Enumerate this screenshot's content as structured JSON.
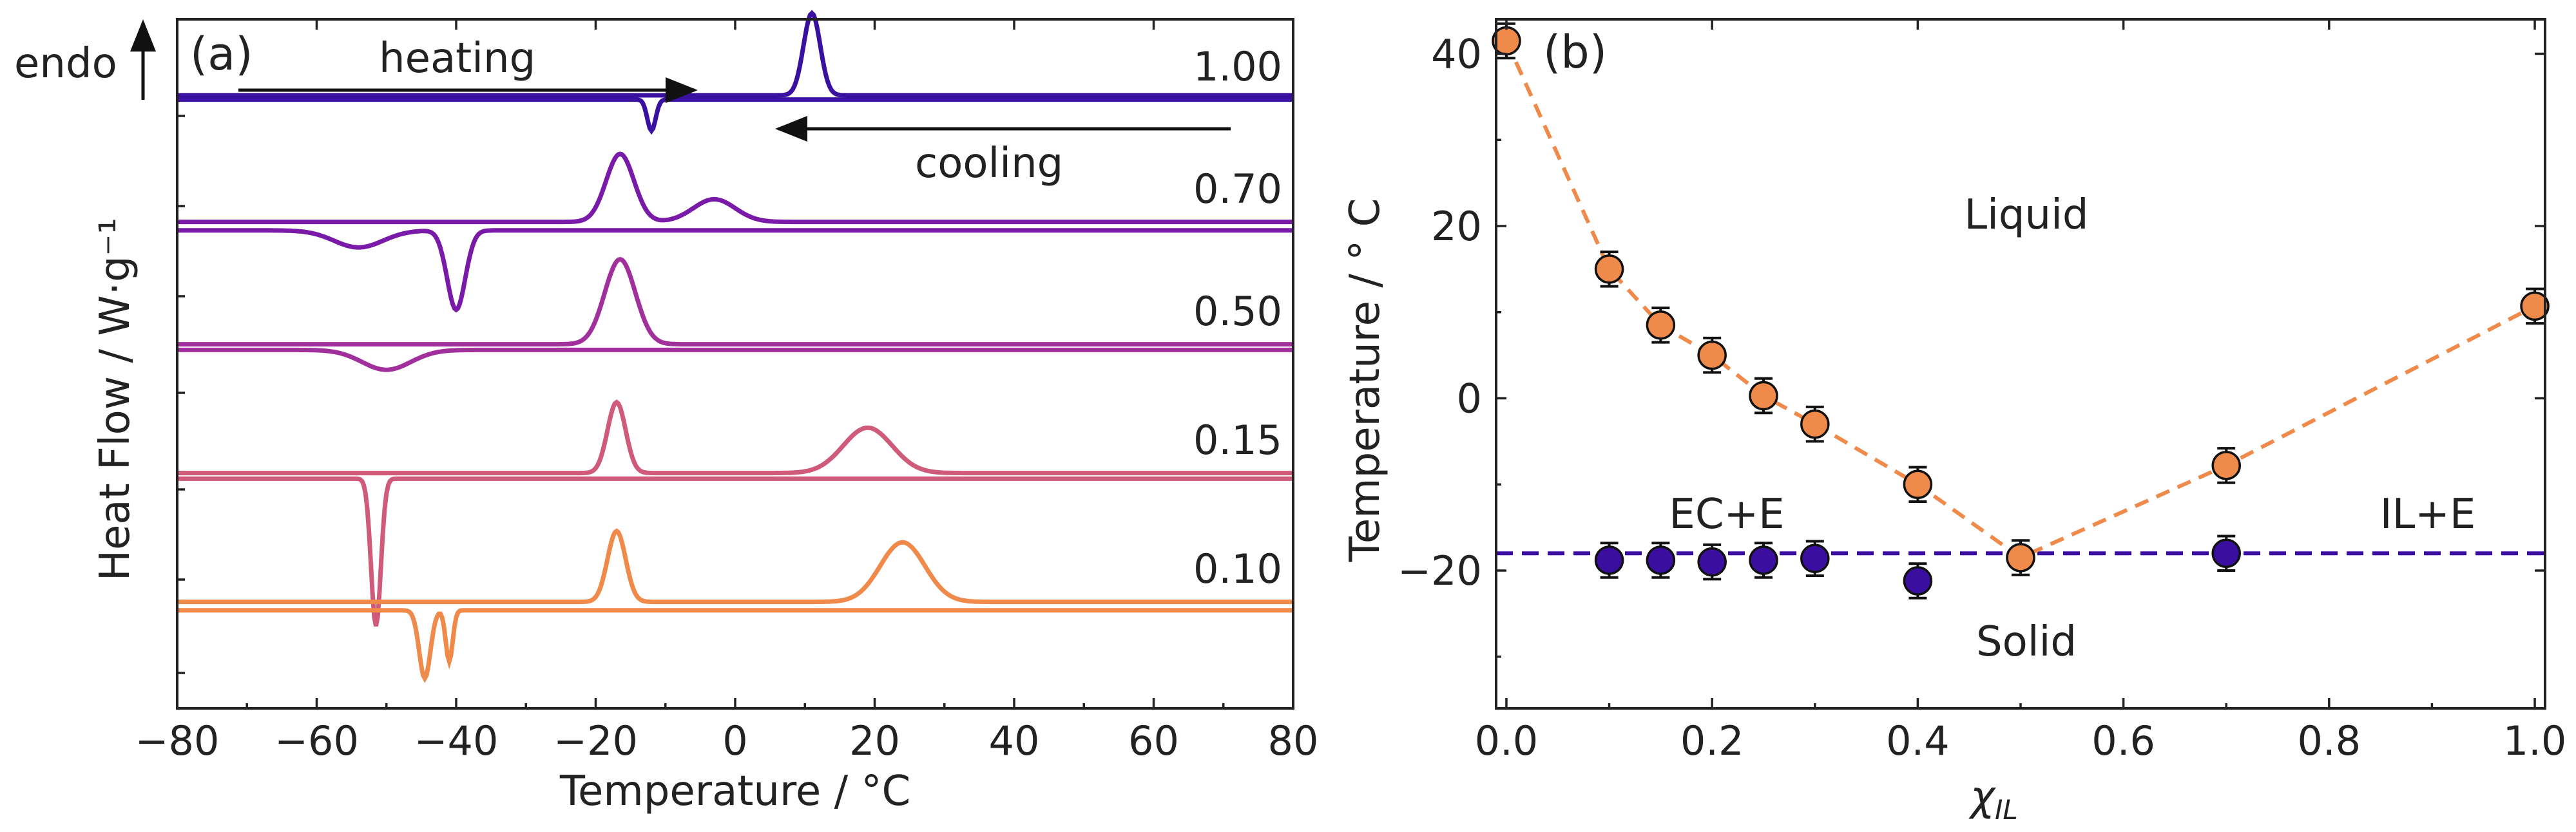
{
  "chart_data": [
    {
      "type": "line",
      "panel": "(a)",
      "xlabel": "Temperature / °C",
      "ylabel": "Heat Flow / W·g⁻¹",
      "xlim": [
        -80,
        80
      ],
      "xticks": [
        -80,
        -60,
        -40,
        -20,
        0,
        20,
        40,
        60,
        80
      ],
      "endo_label": "endo",
      "heating_label": "heating",
      "cooling_label": "cooling",
      "series": [
        {
          "name": "1.00",
          "color": "#3a10a0",
          "heating_base": 0.5,
          "cooling_base": 0.35,
          "heating_peaks": [
            {
              "x": 11,
              "h": 2.9,
              "w": 1.2
            }
          ],
          "cooling_peaks": [
            {
              "x": -12,
              "h": -1.1,
              "w": 0.6
            }
          ]
        },
        {
          "name": "0.70",
          "color": "#7a1aa8",
          "heating_base": 0.35,
          "cooling_base": 0.05,
          "heating_peaks": [
            {
              "x": -16.5,
              "h": 2.4,
              "w": 2.0
            },
            {
              "x": -3,
              "h": 0.8,
              "w": 3.0
            }
          ],
          "cooling_peaks": [
            {
              "x": -54,
              "h": -0.6,
              "w": 3.5
            },
            {
              "x": -40,
              "h": -2.8,
              "w": 1.3
            }
          ]
        },
        {
          "name": "0.50",
          "color": "#a2309c",
          "heating_base": 0.35,
          "cooling_base": 0.15,
          "heating_peaks": [
            {
              "x": -16.5,
              "h": 3.0,
              "w": 2.2
            }
          ],
          "cooling_peaks": [
            {
              "x": -50,
              "h": -0.7,
              "w": 3.5
            }
          ]
        },
        {
          "name": "0.15",
          "color": "#d05a7a",
          "heating_base": 0.35,
          "cooling_base": 0.15,
          "heating_peaks": [
            {
              "x": -17,
              "h": 2.5,
              "w": 1.3
            },
            {
              "x": 19,
              "h": 1.6,
              "w": 3.5
            }
          ],
          "cooling_peaks": [
            {
              "x": -51.5,
              "h": -5.2,
              "w": 0.7
            }
          ]
        },
        {
          "name": "0.10",
          "color": "#f08a4a",
          "heating_base": 0.35,
          "cooling_base": 0.05,
          "heating_peaks": [
            {
              "x": -17,
              "h": 2.5,
              "w": 1.3
            },
            {
              "x": 24,
              "h": 2.1,
              "w": 3.2
            }
          ],
          "cooling_peaks": [
            {
              "x": -44.5,
              "h": -2.4,
              "w": 0.8
            },
            {
              "x": -41,
              "h": -1.8,
              "w": 0.5
            }
          ]
        }
      ]
    },
    {
      "type": "scatter",
      "panel": "(b)",
      "xlabel": "χIL",
      "xlabel_main": "χ",
      "xlabel_sub": "IL",
      "ylabel": "Temperature / ° C",
      "xlim": [
        -0.01,
        1.01
      ],
      "ylim": [
        -36,
        44
      ],
      "xticks": [
        0.0,
        0.2,
        0.4,
        0.6,
        0.8,
        1.0
      ],
      "xtick_labels": [
        "0.0",
        "0.2",
        "0.4",
        "0.6",
        "0.8",
        "1.0"
      ],
      "yticks": [
        -20,
        0,
        20,
        40
      ],
      "region_labels": [
        "Liquid",
        "Solid",
        "EC+E",
        "IL+E"
      ],
      "liquidus": {
        "color": "#f08a4a",
        "x": [
          0.0,
          0.1,
          0.15,
          0.2,
          0.25,
          0.3,
          0.4,
          0.5,
          0.7,
          1.0
        ],
        "y": [
          41.5,
          15.0,
          8.5,
          5.0,
          0.3,
          -3.0,
          -10.0,
          -18.5,
          -7.8,
          10.7
        ],
        "err": 2
      },
      "solidus": {
        "color": "#3a0fa0",
        "line_y": -18,
        "x": [
          0.1,
          0.15,
          0.2,
          0.25,
          0.3,
          0.4,
          0.7
        ],
        "y": [
          -18.8,
          -18.8,
          -19.0,
          -18.8,
          -18.6,
          -21.2,
          -18.0
        ],
        "err": 2
      }
    }
  ]
}
